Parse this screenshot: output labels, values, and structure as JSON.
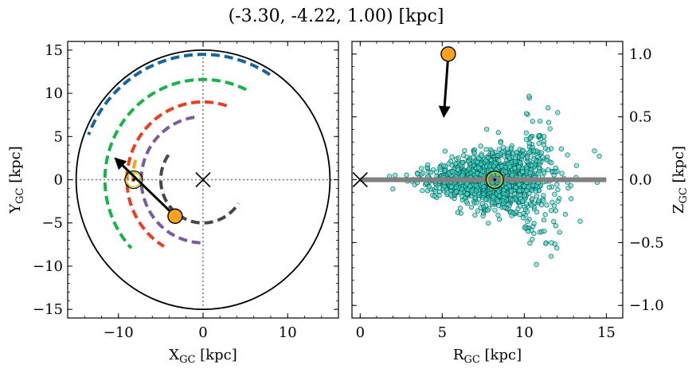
{
  "title": "(-3.30, -4.22, 1.00) [kpc]",
  "chart_data": [
    {
      "type": "line",
      "name": "galactic-plane-xy",
      "xlabel": "X",
      "xlabel_sub": "GC",
      "xlabel_unit": " [kpc]",
      "ylabel": "Y",
      "ylabel_sub": "GC",
      "ylabel_unit": " [kpc]",
      "xlim": [
        -16,
        16
      ],
      "ylim": [
        -16,
        16
      ],
      "xticks": [
        -10,
        0,
        10
      ],
      "yticks": [
        -15,
        -10,
        -5,
        0,
        5,
        10,
        15
      ],
      "xtick_labels": [
        "−10",
        "0",
        "10"
      ],
      "ytick_labels": [
        "−15",
        "−10",
        "−5",
        "0",
        "5",
        "10",
        "15"
      ],
      "boundary_radius": 15,
      "galactic_center": [
        0,
        0
      ],
      "sun": [
        -8.2,
        0
      ],
      "source": [
        -3.3,
        -4.22
      ],
      "velocity_arrow": {
        "from": [
          -3.3,
          -4.22
        ],
        "to": [
          -10.3,
          2.4
        ]
      },
      "arms": [
        {
          "color": "#464646",
          "radius": 5.0,
          "start_deg": 145,
          "end_deg": 327
        },
        {
          "color": "#7d5aa0",
          "radius": 7.3,
          "start_deg": 98,
          "end_deg": 272
        },
        {
          "color": "#f03c1e",
          "radius": 9.0,
          "start_deg": 72,
          "end_deg": 239
        },
        {
          "color": "#14b446",
          "radius": 11.6,
          "start_deg": 64,
          "end_deg": 223
        },
        {
          "color": "#1464a0",
          "radius": 14.5,
          "start_deg": 57,
          "end_deg": 159
        },
        {
          "color": "#ffa01e",
          "radius": 8.3,
          "start_deg": 164,
          "end_deg": 185
        }
      ]
    },
    {
      "type": "scatter",
      "name": "meridional-rz",
      "xlabel": "R",
      "xlabel_sub": "GC",
      "xlabel_unit": " [kpc]",
      "ylabel": "Z",
      "ylabel_sub": "GC",
      "ylabel_unit": " [kpc]",
      "xlim": [
        -0.5,
        16
      ],
      "ylim": [
        -1.1,
        1.1
      ],
      "xticks": [
        0,
        5,
        10,
        15
      ],
      "yticks": [
        -1.0,
        -0.5,
        0.0,
        0.5,
        1.0
      ],
      "xtick_labels": [
        "0",
        "5",
        "10",
        "15"
      ],
      "ytick_labels": [
        "−1.0",
        "−0.5",
        "0.0",
        "0.5",
        "1.0"
      ],
      "disk_line": {
        "x": [
          0,
          15
        ],
        "z": 0
      },
      "galactic_center": [
        0,
        0
      ],
      "sun": [
        8.2,
        0
      ],
      "source": [
        5.37,
        1.0
      ],
      "velocity_arrow": {
        "from": [
          5.37,
          1.0
        ],
        "to": [
          5.1,
          0.51
        ]
      },
      "point_color": "#40e0d0",
      "point_count": 1400
    }
  ]
}
